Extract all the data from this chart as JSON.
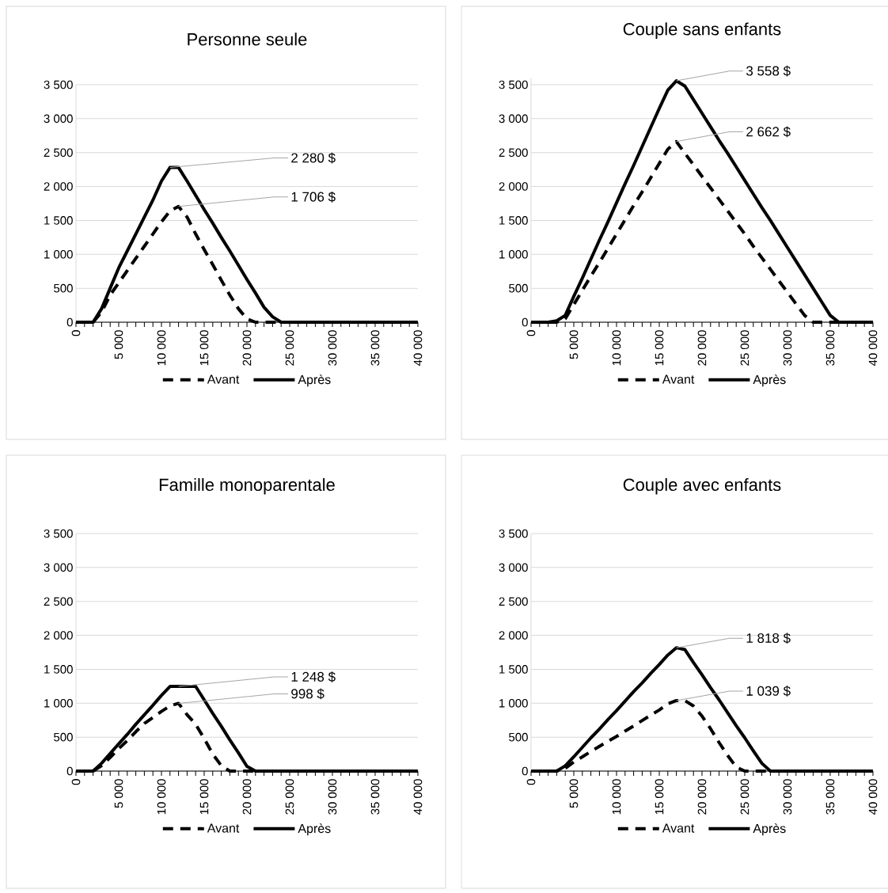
{
  "chart_data": [
    {
      "type": "line",
      "title": "Personne seule",
      "legend": "bottom",
      "grid": "y",
      "marker": "none",
      "x": [
        0,
        1000,
        2000,
        3000,
        4000,
        5000,
        6000,
        7000,
        8000,
        9000,
        10000,
        11000,
        12000,
        13000,
        14000,
        15000,
        16000,
        17000,
        18000,
        19000,
        20000,
        21000,
        22000,
        23000,
        24000,
        25000,
        26000,
        27000,
        28000,
        29000,
        30000,
        31000,
        32000,
        33000,
        34000,
        35000,
        36000,
        37000,
        38000,
        39000,
        40000
      ],
      "xlim": [
        0,
        40000
      ],
      "xticks": [
        {
          "value": 0,
          "label": "0"
        },
        {
          "value": 1000,
          "label": null
        },
        {
          "value": 2000,
          "label": null
        },
        {
          "value": 3000,
          "label": null
        },
        {
          "value": 4000,
          "label": null
        },
        {
          "value": 5000,
          "label": "5 000"
        },
        {
          "value": 6000,
          "label": null
        },
        {
          "value": 7000,
          "label": null
        },
        {
          "value": 8000,
          "label": null
        },
        {
          "value": 9000,
          "label": null
        },
        {
          "value": 10000,
          "label": "10 000"
        },
        {
          "value": 11000,
          "label": null
        },
        {
          "value": 12000,
          "label": null
        },
        {
          "value": 13000,
          "label": null
        },
        {
          "value": 14000,
          "label": null
        },
        {
          "value": 15000,
          "label": "15 000"
        },
        {
          "value": 16000,
          "label": null
        },
        {
          "value": 17000,
          "label": null
        },
        {
          "value": 18000,
          "label": null
        },
        {
          "value": 19000,
          "label": null
        },
        {
          "value": 20000,
          "label": "20 000"
        },
        {
          "value": 21000,
          "label": null
        },
        {
          "value": 22000,
          "label": null
        },
        {
          "value": 23000,
          "label": null
        },
        {
          "value": 24000,
          "label": null
        },
        {
          "value": 25000,
          "label": "25 000"
        },
        {
          "value": 26000,
          "label": null
        },
        {
          "value": 27000,
          "label": null
        },
        {
          "value": 28000,
          "label": null
        },
        {
          "value": 29000,
          "label": null
        },
        {
          "value": 30000,
          "label": "30 000"
        },
        {
          "value": 31000,
          "label": null
        },
        {
          "value": 32000,
          "label": null
        },
        {
          "value": 33000,
          "label": null
        },
        {
          "value": 34000,
          "label": null
        },
        {
          "value": 35000,
          "label": "35 000"
        },
        {
          "value": 36000,
          "label": null
        },
        {
          "value": 37000,
          "label": null
        },
        {
          "value": 38000,
          "label": null
        },
        {
          "value": 39000,
          "label": null
        },
        {
          "value": 40000,
          "label": "40 000"
        }
      ],
      "ylim": [
        0,
        3500
      ],
      "yticks": [
        0,
        500,
        {
          "value": 1000,
          "label": "1 000"
        },
        {
          "value": 1500,
          "label": "1 500"
        },
        {
          "value": 2000,
          "label": "2 000"
        },
        {
          "value": 2500,
          "label": "2 500"
        },
        {
          "value": 3000,
          "label": "3 000"
        },
        {
          "value": 3500,
          "label": "3 500"
        }
      ],
      "series": [
        {
          "name": "Avant",
          "color": "#000000",
          "line_style": "dashed",
          "values": [
            0,
            0,
            0,
            150,
            400,
            580,
            760,
            940,
            1120,
            1300,
            1480,
            1640,
            1706,
            1550,
            1300,
            1070,
            850,
            620,
            400,
            200,
            50,
            0,
            0,
            0,
            0,
            0,
            0,
            0,
            0,
            0,
            0,
            0,
            0,
            0,
            0,
            0,
            0,
            0,
            0,
            0,
            0
          ]
        },
        {
          "name": "Après",
          "color": "#000000",
          "line_style": "solid",
          "values": [
            0,
            0,
            0,
            200,
            500,
            800,
            1050,
            1300,
            1550,
            1800,
            2080,
            2280,
            2280,
            2080,
            1870,
            1660,
            1460,
            1250,
            1050,
            840,
            630,
            430,
            220,
            80,
            0,
            0,
            0,
            0,
            0,
            0,
            0,
            0,
            0,
            0,
            0,
            0,
            0,
            0,
            0,
            0,
            0
          ]
        }
      ],
      "annotations": [
        {
          "text": "2 280 $",
          "x": 11000,
          "y": 2280
        },
        {
          "text": "1 706 $",
          "x": 12000,
          "y": 1706
        }
      ]
    },
    {
      "type": "line",
      "title": "Couple sans enfants",
      "legend": "bottom",
      "grid": "y",
      "marker": "none",
      "x": [
        0,
        1000,
        2000,
        3000,
        4000,
        5000,
        6000,
        7000,
        8000,
        9000,
        10000,
        11000,
        12000,
        13000,
        14000,
        15000,
        16000,
        17000,
        18000,
        19000,
        20000,
        21000,
        22000,
        23000,
        24000,
        25000,
        26000,
        27000,
        28000,
        29000,
        30000,
        31000,
        32000,
        33000,
        34000,
        35000,
        36000,
        37000,
        38000,
        39000,
        40000
      ],
      "xlim": [
        0,
        40000
      ],
      "xticks": [
        {
          "value": 0,
          "label": "0"
        },
        {
          "value": 1000,
          "label": null
        },
        {
          "value": 2000,
          "label": null
        },
        {
          "value": 3000,
          "label": null
        },
        {
          "value": 4000,
          "label": null
        },
        {
          "value": 5000,
          "label": "5 000"
        },
        {
          "value": 6000,
          "label": null
        },
        {
          "value": 7000,
          "label": null
        },
        {
          "value": 8000,
          "label": null
        },
        {
          "value": 9000,
          "label": null
        },
        {
          "value": 10000,
          "label": "10 000"
        },
        {
          "value": 11000,
          "label": null
        },
        {
          "value": 12000,
          "label": null
        },
        {
          "value": 13000,
          "label": null
        },
        {
          "value": 14000,
          "label": null
        },
        {
          "value": 15000,
          "label": "15 000"
        },
        {
          "value": 16000,
          "label": null
        },
        {
          "value": 17000,
          "label": null
        },
        {
          "value": 18000,
          "label": null
        },
        {
          "value": 19000,
          "label": null
        },
        {
          "value": 20000,
          "label": "20 000"
        },
        {
          "value": 21000,
          "label": null
        },
        {
          "value": 22000,
          "label": null
        },
        {
          "value": 23000,
          "label": null
        },
        {
          "value": 24000,
          "label": null
        },
        {
          "value": 25000,
          "label": "25 000"
        },
        {
          "value": 26000,
          "label": null
        },
        {
          "value": 27000,
          "label": null
        },
        {
          "value": 28000,
          "label": null
        },
        {
          "value": 29000,
          "label": null
        },
        {
          "value": 30000,
          "label": "30 000"
        },
        {
          "value": 31000,
          "label": null
        },
        {
          "value": 32000,
          "label": null
        },
        {
          "value": 33000,
          "label": null
        },
        {
          "value": 34000,
          "label": null
        },
        {
          "value": 35000,
          "label": "35 000"
        },
        {
          "value": 36000,
          "label": null
        },
        {
          "value": 37000,
          "label": null
        },
        {
          "value": 38000,
          "label": null
        },
        {
          "value": 39000,
          "label": null
        },
        {
          "value": 40000,
          "label": "40 000"
        }
      ],
      "ylim": [
        0,
        3600
      ],
      "yticks": [
        0,
        500,
        {
          "value": 1000,
          "label": "1 000"
        },
        {
          "value": 1500,
          "label": "1 500"
        },
        {
          "value": 2000,
          "label": "2 000"
        },
        {
          "value": 2500,
          "label": "2 500"
        },
        {
          "value": 3000,
          "label": "3 000"
        },
        {
          "value": 3500,
          "label": "3 500"
        }
      ],
      "series": [
        {
          "name": "Avant",
          "color": "#000000",
          "line_style": "dashed",
          "values": [
            0,
            0,
            0,
            0,
            50,
            260,
            470,
            680,
            880,
            1090,
            1300,
            1510,
            1720,
            1920,
            2130,
            2340,
            2550,
            2662,
            2490,
            2320,
            2150,
            1980,
            1810,
            1640,
            1470,
            1300,
            1120,
            950,
            780,
            610,
            440,
            270,
            100,
            0,
            0,
            0,
            0,
            0,
            0,
            0,
            0
          ]
        },
        {
          "name": "Après",
          "color": "#000000",
          "line_style": "solid",
          "values": [
            0,
            0,
            0,
            20,
            100,
            380,
            650,
            930,
            1210,
            1480,
            1760,
            2040,
            2310,
            2590,
            2870,
            3150,
            3420,
            3558,
            3480,
            3280,
            3080,
            2880,
            2680,
            2490,
            2290,
            2090,
            1890,
            1690,
            1500,
            1300,
            1100,
            900,
            700,
            500,
            300,
            100,
            0,
            0,
            0,
            0,
            0
          ]
        }
      ],
      "annotations": [
        {
          "text": "3 558 $",
          "x": 17000,
          "y": 3558
        },
        {
          "text": "2 662 $",
          "x": 17000,
          "y": 2662
        }
      ]
    },
    {
      "type": "line",
      "title": "Famille monoparentale",
      "legend": "bottom",
      "grid": "y",
      "marker": "none",
      "x": [
        0,
        1000,
        2000,
        3000,
        4000,
        5000,
        6000,
        7000,
        8000,
        9000,
        10000,
        11000,
        12000,
        13000,
        14000,
        15000,
        16000,
        17000,
        18000,
        19000,
        20000,
        21000,
        22000,
        23000,
        24000,
        25000,
        26000,
        27000,
        28000,
        29000,
        30000,
        31000,
        32000,
        33000,
        34000,
        35000,
        36000,
        37000,
        38000,
        39000,
        40000
      ],
      "xlim": [
        0,
        40000
      ],
      "xticks": [
        {
          "value": 0,
          "label": "0"
        },
        {
          "value": 1000,
          "label": null
        },
        {
          "value": 2000,
          "label": null
        },
        {
          "value": 3000,
          "label": null
        },
        {
          "value": 4000,
          "label": null
        },
        {
          "value": 5000,
          "label": "5 000"
        },
        {
          "value": 6000,
          "label": null
        },
        {
          "value": 7000,
          "label": null
        },
        {
          "value": 8000,
          "label": null
        },
        {
          "value": 9000,
          "label": null
        },
        {
          "value": 10000,
          "label": "10 000"
        },
        {
          "value": 11000,
          "label": null
        },
        {
          "value": 12000,
          "label": null
        },
        {
          "value": 13000,
          "label": null
        },
        {
          "value": 14000,
          "label": null
        },
        {
          "value": 15000,
          "label": "15 000"
        },
        {
          "value": 16000,
          "label": null
        },
        {
          "value": 17000,
          "label": null
        },
        {
          "value": 18000,
          "label": null
        },
        {
          "value": 19000,
          "label": null
        },
        {
          "value": 20000,
          "label": "20 000"
        },
        {
          "value": 21000,
          "label": null
        },
        {
          "value": 22000,
          "label": null
        },
        {
          "value": 23000,
          "label": null
        },
        {
          "value": 24000,
          "label": null
        },
        {
          "value": 25000,
          "label": "25 000"
        },
        {
          "value": 26000,
          "label": null
        },
        {
          "value": 27000,
          "label": null
        },
        {
          "value": 28000,
          "label": null
        },
        {
          "value": 29000,
          "label": null
        },
        {
          "value": 30000,
          "label": "30 000"
        },
        {
          "value": 31000,
          "label": null
        },
        {
          "value": 32000,
          "label": null
        },
        {
          "value": 33000,
          "label": null
        },
        {
          "value": 34000,
          "label": null
        },
        {
          "value": 35000,
          "label": "35 000"
        },
        {
          "value": 36000,
          "label": null
        },
        {
          "value": 37000,
          "label": null
        },
        {
          "value": 38000,
          "label": null
        },
        {
          "value": 39000,
          "label": null
        },
        {
          "value": 40000,
          "label": "40 000"
        }
      ],
      "ylim": [
        0,
        3500
      ],
      "yticks": [
        0,
        500,
        {
          "value": 1000,
          "label": "1 000"
        },
        {
          "value": 1500,
          "label": "1 500"
        },
        {
          "value": 2000,
          "label": "2 000"
        },
        {
          "value": 2500,
          "label": "2 500"
        },
        {
          "value": 3000,
          "label": "3 000"
        },
        {
          "value": 3500,
          "label": "3 500"
        }
      ],
      "series": [
        {
          "name": "Avant",
          "color": "#000000",
          "line_style": "dashed",
          "values": [
            0,
            0,
            0,
            80,
            200,
            330,
            450,
            580,
            700,
            790,
            880,
            960,
            998,
            830,
            690,
            480,
            250,
            80,
            0,
            0,
            0,
            0,
            0,
            0,
            0,
            0,
            0,
            0,
            0,
            0,
            0,
            0,
            0,
            0,
            0,
            0,
            0,
            0,
            0,
            0,
            0
          ]
        },
        {
          "name": "Après",
          "color": "#000000",
          "line_style": "solid",
          "values": [
            0,
            0,
            0,
            115,
            260,
            400,
            540,
            690,
            830,
            970,
            1115,
            1248,
            1248,
            1248,
            1248,
            1050,
            850,
            660,
            460,
            270,
            70,
            0,
            0,
            0,
            0,
            0,
            0,
            0,
            0,
            0,
            0,
            0,
            0,
            0,
            0,
            0,
            0,
            0,
            0,
            0,
            0
          ]
        }
      ],
      "annotations": [
        {
          "text": "1 248 $",
          "x": 12000,
          "y": 1248
        },
        {
          "text": "998 $",
          "x": 12000,
          "y": 998
        }
      ]
    },
    {
      "type": "line",
      "title": "Couple avec enfants",
      "legend": "bottom",
      "grid": "y",
      "marker": "none",
      "x": [
        0,
        1000,
        2000,
        3000,
        4000,
        5000,
        6000,
        7000,
        8000,
        9000,
        10000,
        11000,
        12000,
        13000,
        14000,
        15000,
        16000,
        17000,
        18000,
        19000,
        20000,
        21000,
        22000,
        23000,
        24000,
        25000,
        26000,
        27000,
        28000,
        29000,
        30000,
        31000,
        32000,
        33000,
        34000,
        35000,
        36000,
        37000,
        38000,
        39000,
        40000
      ],
      "xlim": [
        0,
        40000
      ],
      "xticks": [
        {
          "value": 0,
          "label": "0"
        },
        {
          "value": 1000,
          "label": null
        },
        {
          "value": 2000,
          "label": null
        },
        {
          "value": 3000,
          "label": null
        },
        {
          "value": 4000,
          "label": null
        },
        {
          "value": 5000,
          "label": "5 000"
        },
        {
          "value": 6000,
          "label": null
        },
        {
          "value": 7000,
          "label": null
        },
        {
          "value": 8000,
          "label": null
        },
        {
          "value": 9000,
          "label": null
        },
        {
          "value": 10000,
          "label": "10 000"
        },
        {
          "value": 11000,
          "label": null
        },
        {
          "value": 12000,
          "label": null
        },
        {
          "value": 13000,
          "label": null
        },
        {
          "value": 14000,
          "label": null
        },
        {
          "value": 15000,
          "label": "15 000"
        },
        {
          "value": 16000,
          "label": null
        },
        {
          "value": 17000,
          "label": null
        },
        {
          "value": 18000,
          "label": null
        },
        {
          "value": 19000,
          "label": null
        },
        {
          "value": 20000,
          "label": "20 000"
        },
        {
          "value": 21000,
          "label": null
        },
        {
          "value": 22000,
          "label": null
        },
        {
          "value": 23000,
          "label": null
        },
        {
          "value": 24000,
          "label": null
        },
        {
          "value": 25000,
          "label": "25 000"
        },
        {
          "value": 26000,
          "label": null
        },
        {
          "value": 27000,
          "label": null
        },
        {
          "value": 28000,
          "label": null
        },
        {
          "value": 29000,
          "label": null
        },
        {
          "value": 30000,
          "label": "30 000"
        },
        {
          "value": 31000,
          "label": null
        },
        {
          "value": 32000,
          "label": null
        },
        {
          "value": 33000,
          "label": null
        },
        {
          "value": 34000,
          "label": null
        },
        {
          "value": 35000,
          "label": "35 000"
        },
        {
          "value": 36000,
          "label": null
        },
        {
          "value": 37000,
          "label": null
        },
        {
          "value": 38000,
          "label": null
        },
        {
          "value": 39000,
          "label": null
        },
        {
          "value": 40000,
          "label": "40 000"
        }
      ],
      "ylim": [
        0,
        3500
      ],
      "yticks": [
        0,
        500,
        {
          "value": 1000,
          "label": "1 000"
        },
        {
          "value": 1500,
          "label": "1 500"
        },
        {
          "value": 2000,
          "label": "2 000"
        },
        {
          "value": 2500,
          "label": "2 500"
        },
        {
          "value": 3000,
          "label": "3 000"
        },
        {
          "value": 3500,
          "label": "3 500"
        }
      ],
      "series": [
        {
          "name": "Avant",
          "color": "#000000",
          "line_style": "dashed",
          "values": [
            0,
            0,
            0,
            0,
            40,
            135,
            210,
            290,
            365,
            440,
            510,
            590,
            665,
            745,
            825,
            900,
            990,
            1039,
            1039,
            960,
            810,
            625,
            420,
            230,
            60,
            0,
            0,
            0,
            0,
            0,
            0,
            0,
            0,
            0,
            0,
            0,
            0,
            0,
            0,
            0,
            0
          ]
        },
        {
          "name": "Après",
          "color": "#000000",
          "line_style": "solid",
          "values": [
            0,
            0,
            0,
            0,
            77,
            210,
            350,
            490,
            620,
            760,
            890,
            1030,
            1170,
            1300,
            1440,
            1570,
            1710,
            1818,
            1790,
            1600,
            1420,
            1230,
            1050,
            860,
            670,
            490,
            300,
            115,
            0,
            0,
            0,
            0,
            0,
            0,
            0,
            0,
            0,
            0,
            0,
            0,
            0
          ]
        }
      ],
      "annotations": [
        {
          "text": "1 818 $",
          "x": 17000,
          "y": 1818
        },
        {
          "text": "1 039 $",
          "x": 17000,
          "y": 1039
        }
      ]
    }
  ]
}
